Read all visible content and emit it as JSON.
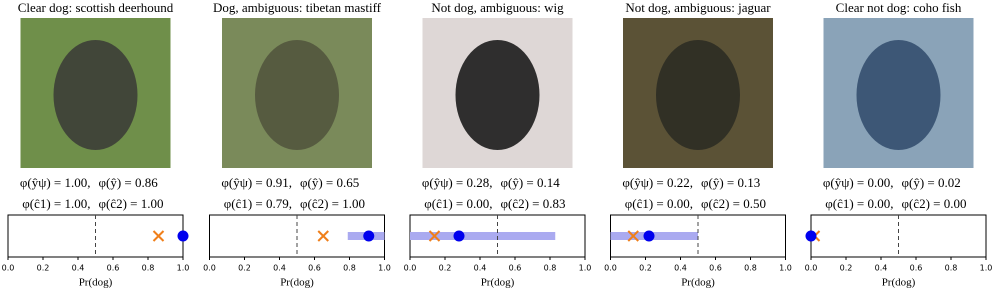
{
  "chart_data": [
    {
      "type": "interval",
      "title": "Clear dog: scottish deerhound",
      "values": [
        1.0,
        0.86,
        1.0,
        1.0
      ],
      "value_labels": [
        "φ(ŷψ) = 1.00,",
        "φ(ŷ) = 0.86",
        "φ(ĉ1) = 1.00,",
        "φ(ĉ2) = 1.00"
      ],
      "xlim": [
        0,
        1
      ],
      "xticks": [
        {
          "value": 0,
          "label": "0.0"
        },
        0.2,
        0.4,
        0.6,
        0.8,
        {
          "value": 1,
          "label": "1.0"
        }
      ],
      "threshold": 0.5,
      "xlabel": "Pr(dog)"
    },
    {
      "type": "interval",
      "title": "Dog, ambiguous: tibetan mastiff",
      "values": [
        0.91,
        0.65,
        0.79,
        1.0
      ],
      "value_labels": [
        "φ(ŷψ) = 0.91,",
        "φ(ŷ) = 0.65",
        "φ(ĉ1) = 0.79,",
        "φ(ĉ2) = 1.00"
      ],
      "xlim": [
        0,
        1
      ],
      "xticks": [
        {
          "value": 0,
          "label": "0.0"
        },
        0.2,
        0.4,
        0.6,
        0.8,
        {
          "value": 1,
          "label": "1.0"
        }
      ],
      "threshold": 0.5,
      "xlabel": "Pr(dog)"
    },
    {
      "type": "interval",
      "title": "Not dog, ambiguous: wig",
      "values": [
        0.28,
        0.14,
        0.0,
        0.83
      ],
      "value_labels": [
        "φ(ŷψ) = 0.28,",
        "φ(ŷ) = 0.14",
        "φ(ĉ1) = 0.00,",
        "φ(ĉ2) = 0.83"
      ],
      "xlim": [
        0,
        1
      ],
      "xticks": [
        {
          "value": 0,
          "label": "0.0"
        },
        0.2,
        0.4,
        0.6,
        0.8,
        {
          "value": 1,
          "label": "1.0"
        }
      ],
      "threshold": 0.5,
      "xlabel": "Pr(dog)"
    },
    {
      "type": "interval",
      "title": "Not dog, ambiguous: jaguar",
      "values": [
        0.22,
        0.13,
        0.0,
        0.5
      ],
      "value_labels": [
        "φ(ŷψ) = 0.22,",
        "φ(ŷ) = 0.13",
        "φ(ĉ1) = 0.00,",
        "φ(ĉ2) = 0.50"
      ],
      "xlim": [
        0,
        1
      ],
      "xticks": [
        {
          "value": 0,
          "label": "0.0"
        },
        0.2,
        0.4,
        0.6,
        0.8,
        {
          "value": 1,
          "label": "1.0"
        }
      ],
      "threshold": 0.5,
      "xlabel": "Pr(dog)"
    },
    {
      "type": "interval",
      "title": "Clear not dog: coho fish",
      "values": [
        0.0,
        0.02,
        0.0,
        0.0
      ],
      "value_labels": [
        "φ(ŷψ) = 0.00,",
        "φ(ŷ) = 0.02",
        "φ(ĉ1) = 0.00,",
        "φ(ĉ2) = 0.00"
      ],
      "xlim": [
        0,
        1
      ],
      "xticks": [
        {
          "value": 0,
          "label": "0.0"
        },
        0.2,
        0.4,
        0.6,
        0.8,
        {
          "value": 1,
          "label": "1.0"
        }
      ],
      "threshold": 0.5,
      "xlabel": "Pr(dog)"
    }
  ]
}
